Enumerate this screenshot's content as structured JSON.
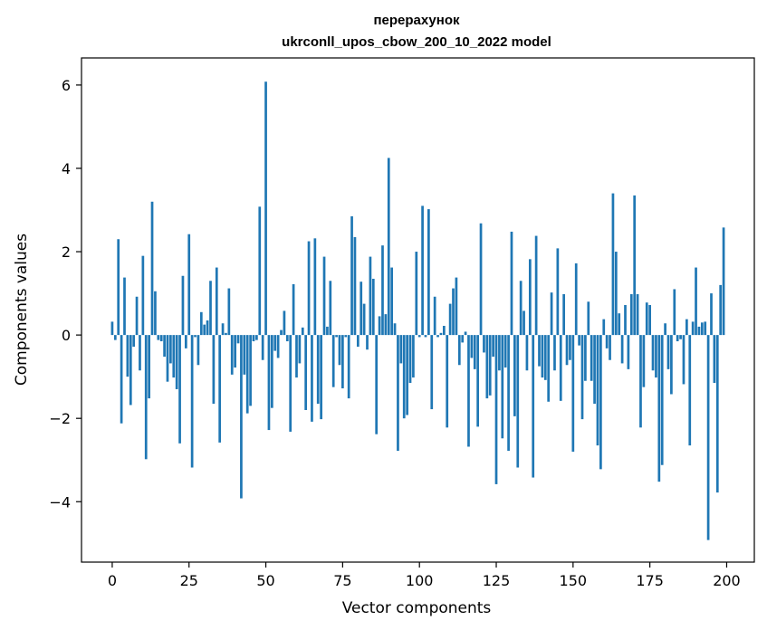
{
  "chart_data": {
    "type": "bar",
    "title": "перерахунок",
    "subtitle": "ukrconll_upos_cbow_200_10_2022 model",
    "xlabel": "Vector components",
    "ylabel": "Components values",
    "xlim": [
      -10,
      209
    ],
    "ylim": [
      -5.45,
      6.65
    ],
    "xticks": [
      0,
      25,
      50,
      75,
      100,
      125,
      150,
      175,
      200
    ],
    "yticks": [
      -4,
      -2,
      0,
      2,
      4,
      6
    ],
    "ytick_labels": [
      "−4",
      "−2",
      "0",
      "2",
      "4",
      "6"
    ],
    "grid": false,
    "bar_color": "#1f77b4",
    "x": [
      0,
      1,
      2,
      3,
      4,
      5,
      6,
      7,
      8,
      9,
      10,
      11,
      12,
      13,
      14,
      15,
      16,
      17,
      18,
      19,
      20,
      21,
      22,
      23,
      24,
      25,
      26,
      27,
      28,
      29,
      30,
      31,
      32,
      33,
      34,
      35,
      36,
      37,
      38,
      39,
      40,
      41,
      42,
      43,
      44,
      45,
      46,
      47,
      48,
      49,
      50,
      51,
      52,
      53,
      54,
      55,
      56,
      57,
      58,
      59,
      60,
      61,
      62,
      63,
      64,
      65,
      66,
      67,
      68,
      69,
      70,
      71,
      72,
      73,
      74,
      75,
      76,
      77,
      78,
      79,
      80,
      81,
      82,
      83,
      84,
      85,
      86,
      87,
      88,
      89,
      90,
      91,
      92,
      93,
      94,
      95,
      96,
      97,
      98,
      99,
      100,
      101,
      102,
      103,
      104,
      105,
      106,
      107,
      108,
      109,
      110,
      111,
      112,
      113,
      114,
      115,
      116,
      117,
      118,
      119,
      120,
      121,
      122,
      123,
      124,
      125,
      126,
      127,
      128,
      129,
      130,
      131,
      132,
      133,
      134,
      135,
      136,
      137,
      138,
      139,
      140,
      141,
      142,
      143,
      144,
      145,
      146,
      147,
      148,
      149,
      150,
      151,
      152,
      153,
      154,
      155,
      156,
      157,
      158,
      159,
      160,
      161,
      162,
      163,
      164,
      165,
      166,
      167,
      168,
      169,
      170,
      171,
      172,
      173,
      174,
      175,
      176,
      177,
      178,
      179,
      180,
      181,
      182,
      183,
      184,
      185,
      186,
      187,
      188,
      189,
      190,
      191,
      192,
      193,
      194,
      195,
      196,
      197,
      198,
      199
    ],
    "values": [
      0.32,
      -0.12,
      2.3,
      -2.12,
      1.38,
      -1.0,
      -1.68,
      -0.28,
      0.92,
      -0.85,
      1.9,
      -2.98,
      -1.52,
      3.2,
      1.05,
      -0.12,
      -0.15,
      -0.52,
      -1.12,
      -0.68,
      -1.02,
      -1.3,
      -2.6,
      1.42,
      -0.32,
      2.42,
      -3.18,
      -0.05,
      -0.72,
      0.55,
      0.25,
      0.35,
      1.3,
      -1.65,
      1.62,
      -2.58,
      0.28,
      0.05,
      1.12,
      -0.95,
      -0.78,
      -0.2,
      -3.92,
      -0.95,
      -1.88,
      -1.7,
      -0.15,
      -0.12,
      3.08,
      -0.6,
      6.08,
      -2.28,
      -1.75,
      -0.38,
      -0.55,
      0.12,
      0.58,
      -0.15,
      -2.32,
      1.22,
      -1.02,
      -0.68,
      0.18,
      -1.8,
      2.25,
      -2.08,
      2.32,
      -1.65,
      -2.02,
      1.88,
      0.2,
      1.3,
      -1.25,
      -0.05,
      -0.72,
      -1.28,
      -0.05,
      -1.52,
      2.85,
      2.35,
      -0.28,
      1.28,
      0.75,
      -0.35,
      1.88,
      1.35,
      -2.38,
      0.45,
      2.15,
      0.5,
      4.25,
      1.62,
      0.28,
      -2.78,
      -0.68,
      -2.0,
      -1.92,
      -1.15,
      -1.02,
      2.0,
      -0.05,
      3.1,
      -0.05,
      3.02,
      -1.78,
      0.92,
      -0.05,
      0.05,
      0.22,
      -2.22,
      0.75,
      1.12,
      1.38,
      -0.72,
      -0.18,
      0.08,
      -2.68,
      -0.55,
      -0.82,
      -2.2,
      2.68,
      -0.42,
      -1.52,
      -1.45,
      -0.52,
      -3.58,
      -0.85,
      -2.48,
      -0.78,
      -2.78,
      2.48,
      -1.95,
      -3.18,
      1.3,
      0.58,
      -0.85,
      1.82,
      -3.42,
      2.38,
      -0.75,
      -1.02,
      -1.08,
      -1.6,
      1.02,
      -0.85,
      2.08,
      -1.58,
      0.98,
      -0.72,
      -0.6,
      -2.8,
      1.72,
      -0.25,
      -2.02,
      -1.1,
      0.8,
      -1.1,
      -1.65,
      -2.65,
      -3.22,
      0.38,
      -0.32,
      -0.6,
      3.4,
      2.0,
      0.52,
      -0.68,
      0.72,
      -0.82,
      0.98,
      3.35,
      0.98,
      -2.22,
      -1.25,
      0.78,
      0.72,
      -0.85,
      -1.02,
      -3.52,
      -3.12,
      0.28,
      -0.82,
      -1.42,
      1.1,
      -0.15,
      -0.1,
      -1.18,
      0.38,
      -2.65,
      0.32,
      1.62,
      0.2,
      0.3,
      0.32,
      -4.92,
      1.0,
      -1.15,
      -3.78,
      1.2,
      2.58
    ]
  }
}
